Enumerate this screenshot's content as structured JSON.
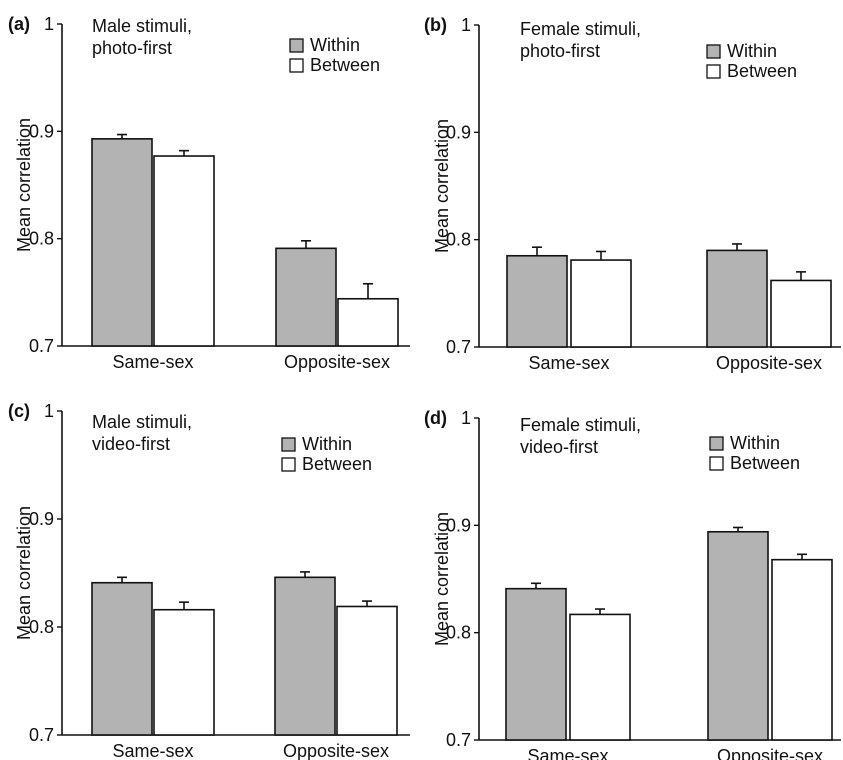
{
  "chart_data": [
    {
      "type": "bar",
      "panel": "(a)",
      "title_lines": [
        "Male stimuli,",
        "photo-first"
      ],
      "ylabel": "Mean correlation",
      "ylim": [
        0.7,
        1.0
      ],
      "yticks": [
        "0.7",
        "0.8",
        "0.9",
        "1"
      ],
      "categories": [
        "Same-sex",
        "Opposite-sex"
      ],
      "series": [
        {
          "name": "Within",
          "color": "#b3b3b3",
          "values": [
            0.893,
            0.791
          ],
          "errors": [
            0.004,
            0.007
          ]
        },
        {
          "name": "Between",
          "color": "#ffffff",
          "values": [
            0.877,
            0.744
          ],
          "errors": [
            0.005,
            0.014
          ]
        }
      ]
    },
    {
      "type": "bar",
      "panel": "(b)",
      "title_lines": [
        "Female stimuli,",
        "photo-first"
      ],
      "ylabel": "Mean correlation",
      "ylim": [
        0.7,
        1.0
      ],
      "yticks": [
        "0.7",
        "0.8",
        "0.9",
        "1"
      ],
      "categories": [
        "Same-sex",
        "Opposite-sex"
      ],
      "series": [
        {
          "name": "Within",
          "color": "#b3b3b3",
          "values": [
            0.785,
            0.79
          ],
          "errors": [
            0.008,
            0.006
          ]
        },
        {
          "name": "Between",
          "color": "#ffffff",
          "values": [
            0.781,
            0.762
          ],
          "errors": [
            0.008,
            0.008
          ]
        }
      ]
    },
    {
      "type": "bar",
      "panel": "(c)",
      "title_lines": [
        "Male stimuli,",
        "video-first"
      ],
      "ylabel": "Mean correlation",
      "ylim": [
        0.7,
        1.0
      ],
      "yticks": [
        "0.7",
        "0.8",
        "0.9",
        "1"
      ],
      "categories": [
        "Same-sex",
        "Opposite-sex"
      ],
      "series": [
        {
          "name": "Within",
          "color": "#b3b3b3",
          "values": [
            0.841,
            0.846
          ],
          "errors": [
            0.005,
            0.005
          ]
        },
        {
          "name": "Between",
          "color": "#ffffff",
          "values": [
            0.816,
            0.819
          ],
          "errors": [
            0.007,
            0.005
          ]
        }
      ]
    },
    {
      "type": "bar",
      "panel": "(d)",
      "title_lines": [
        "Female stimuli,",
        "video-first"
      ],
      "ylabel": "Mean correlation",
      "ylim": [
        0.7,
        1.0
      ],
      "yticks": [
        "0.7",
        "0.8",
        "0.9",
        "1"
      ],
      "categories": [
        "Same-sex",
        "Opposite-sex"
      ],
      "series": [
        {
          "name": "Within",
          "color": "#b3b3b3",
          "values": [
            0.841,
            0.894
          ],
          "errors": [
            0.005,
            0.004
          ]
        },
        {
          "name": "Between",
          "color": "#ffffff",
          "values": [
            0.817,
            0.868
          ],
          "errors": [
            0.005,
            0.005
          ]
        }
      ]
    }
  ]
}
